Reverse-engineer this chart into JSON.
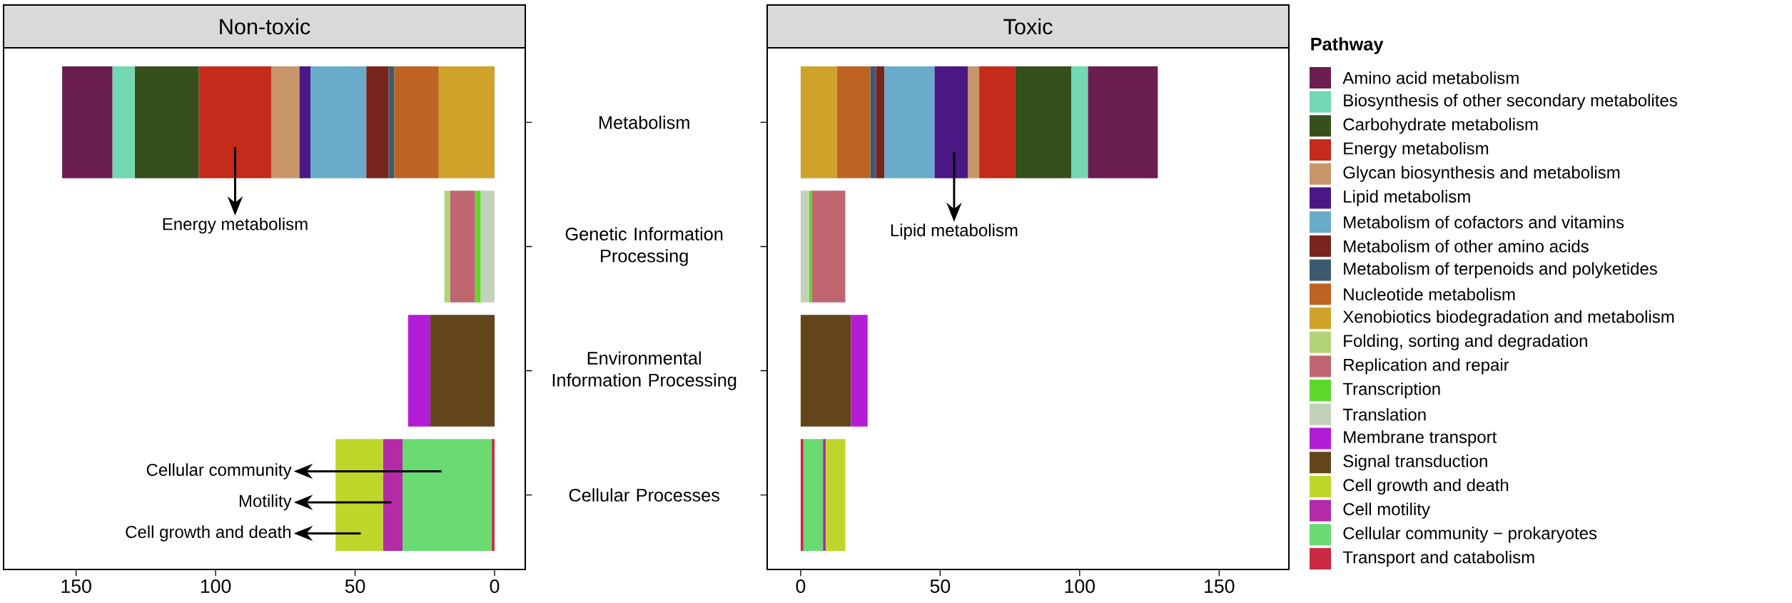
{
  "chart_data": [
    {
      "type": "bar",
      "orientation": "horizontal",
      "stacked": true,
      "title": "Non-toxic",
      "categories": [
        "Metabolism",
        "Genetic Information Processing",
        "Environmental Information Processing",
        "Cellular Processes"
      ],
      "xlim": [
        176,
        -11
      ],
      "xticks": [
        0,
        50,
        100,
        150
      ],
      "series": [
        {
          "color": "#cc2a44",
          "values": [
            null,
            null,
            null,
            1
          ]
        },
        {
          "color": "#6adb72",
          "values": [
            null,
            null,
            null,
            32
          ]
        },
        {
          "color": "#b42ba8",
          "values": [
            null,
            null,
            null,
            7
          ]
        },
        {
          "color": "#bed62a",
          "values": [
            null,
            null,
            null,
            17
          ]
        },
        {
          "color": "#63451c",
          "values": [
            null,
            null,
            23,
            null
          ]
        },
        {
          "color": "#b11ed6",
          "values": [
            null,
            null,
            8,
            null
          ]
        },
        {
          "color": "#c3d1bb",
          "values": [
            null,
            5,
            null,
            null
          ]
        },
        {
          "color": "#5cd82a",
          "values": [
            null,
            2,
            null,
            null
          ]
        },
        {
          "color": "#bf6670",
          "values": [
            null,
            9,
            null,
            null
          ]
        },
        {
          "color": "#b3d378",
          "values": [
            null,
            2,
            null,
            null
          ]
        },
        {
          "color": "#cfa22a",
          "values": [
            20,
            null,
            null,
            null
          ]
        },
        {
          "color": "#be6423",
          "values": [
            16,
            null,
            null,
            null
          ]
        },
        {
          "color": "#3e5a70",
          "values": [
            2,
            null,
            null,
            null
          ]
        },
        {
          "color": "#78241f",
          "values": [
            8,
            null,
            null,
            null
          ]
        },
        {
          "color": "#69abc8",
          "values": [
            20,
            null,
            null,
            null
          ]
        },
        {
          "color": "#4a1785",
          "values": [
            4,
            null,
            null,
            null
          ]
        },
        {
          "color": "#c8966a",
          "values": [
            10,
            null,
            null,
            null
          ]
        },
        {
          "color": "#c42b1b",
          "values": [
            26,
            null,
            null,
            null
          ]
        },
        {
          "color": "#35501c",
          "values": [
            23,
            null,
            null,
            null
          ]
        },
        {
          "color": "#72d8b4",
          "values": [
            8,
            null,
            null,
            null
          ]
        },
        {
          "color": "#6b1e50",
          "values": [
            18,
            null,
            null,
            null
          ]
        }
      ],
      "annotations": [
        "Energy metabolism",
        "Cellular community",
        "Motility",
        "Cell growth and death"
      ]
    },
    {
      "type": "bar",
      "orientation": "horizontal",
      "stacked": true,
      "title": "Toxic",
      "categories": [
        null,
        null,
        null,
        null
      ],
      "xlim": [
        -12,
        175
      ],
      "xticks": [
        0,
        50,
        100,
        150
      ],
      "tick_labels": "x",
      "legend": "right",
      "legend_title": "Pathway",
      "series": [
        {
          "name": "Transport and catabolism",
          "color": "#cc2a44",
          "values": [
            null,
            null,
            null,
            1
          ]
        },
        {
          "name": "Cellular community − prokaryotes",
          "color": "#6adb72",
          "values": [
            null,
            null,
            null,
            7
          ]
        },
        {
          "name": "Cell motility",
          "color": "#b42ba8",
          "values": [
            null,
            null,
            null,
            1
          ]
        },
        {
          "name": "Cell growth and death",
          "color": "#bed62a",
          "values": [
            null,
            null,
            null,
            7
          ]
        },
        {
          "name": "Signal transduction",
          "color": "#63451c",
          "values": [
            null,
            null,
            18,
            null
          ]
        },
        {
          "name": "Membrane transport",
          "color": "#b11ed6",
          "values": [
            null,
            null,
            6,
            null
          ]
        },
        {
          "name": "Translation",
          "color": "#c3d1bb",
          "values": [
            null,
            3,
            null,
            null
          ]
        },
        {
          "name": "Transcription",
          "color": "#5cd82a",
          "values": [
            null,
            1,
            null,
            null
          ]
        },
        {
          "name": "Replication and repair",
          "color": "#bf6670",
          "values": [
            null,
            12,
            null,
            null
          ]
        },
        {
          "name": "Folding, sorting and degradation",
          "color": "#b3d378",
          "values": [
            null,
            null,
            null,
            null
          ]
        },
        {
          "name": "Xenobiotics biodegradation and metabolism",
          "color": "#cfa22a",
          "values": [
            13,
            null,
            null,
            null
          ]
        },
        {
          "name": "Nucleotide metabolism",
          "color": "#be6423",
          "values": [
            12,
            null,
            null,
            null
          ]
        },
        {
          "name": "Metabolism of terpenoids and polyketides",
          "color": "#3e5a70",
          "values": [
            2,
            null,
            null,
            null
          ]
        },
        {
          "name": "Metabolism of other amino acids",
          "color": "#78241f",
          "values": [
            3,
            null,
            null,
            null
          ]
        },
        {
          "name": "Metabolism of cofactors and vitamins",
          "color": "#69abc8",
          "values": [
            18,
            null,
            null,
            null
          ]
        },
        {
          "name": "Lipid metabolism",
          "color": "#4a1785",
          "values": [
            12,
            null,
            null,
            null
          ]
        },
        {
          "name": "Glycan biosynthesis and metabolism",
          "color": "#c8966a",
          "values": [
            4,
            null,
            null,
            null
          ]
        },
        {
          "name": "Energy metabolism",
          "color": "#c42b1b",
          "values": [
            13,
            null,
            null,
            null
          ]
        },
        {
          "name": "Carbohydrate metabolism",
          "color": "#35501c",
          "values": [
            20,
            null,
            null,
            null
          ]
        },
        {
          "name": "Biosynthesis of other secondary metabolites",
          "color": "#72d8b4",
          "values": [
            6,
            null,
            null,
            null
          ]
        },
        {
          "name": "Amino acid metabolism",
          "color": "#6b1e50",
          "values": [
            25,
            null,
            null,
            null
          ]
        }
      ],
      "annotations": [
        "Lipid metabolism"
      ]
    }
  ]
}
